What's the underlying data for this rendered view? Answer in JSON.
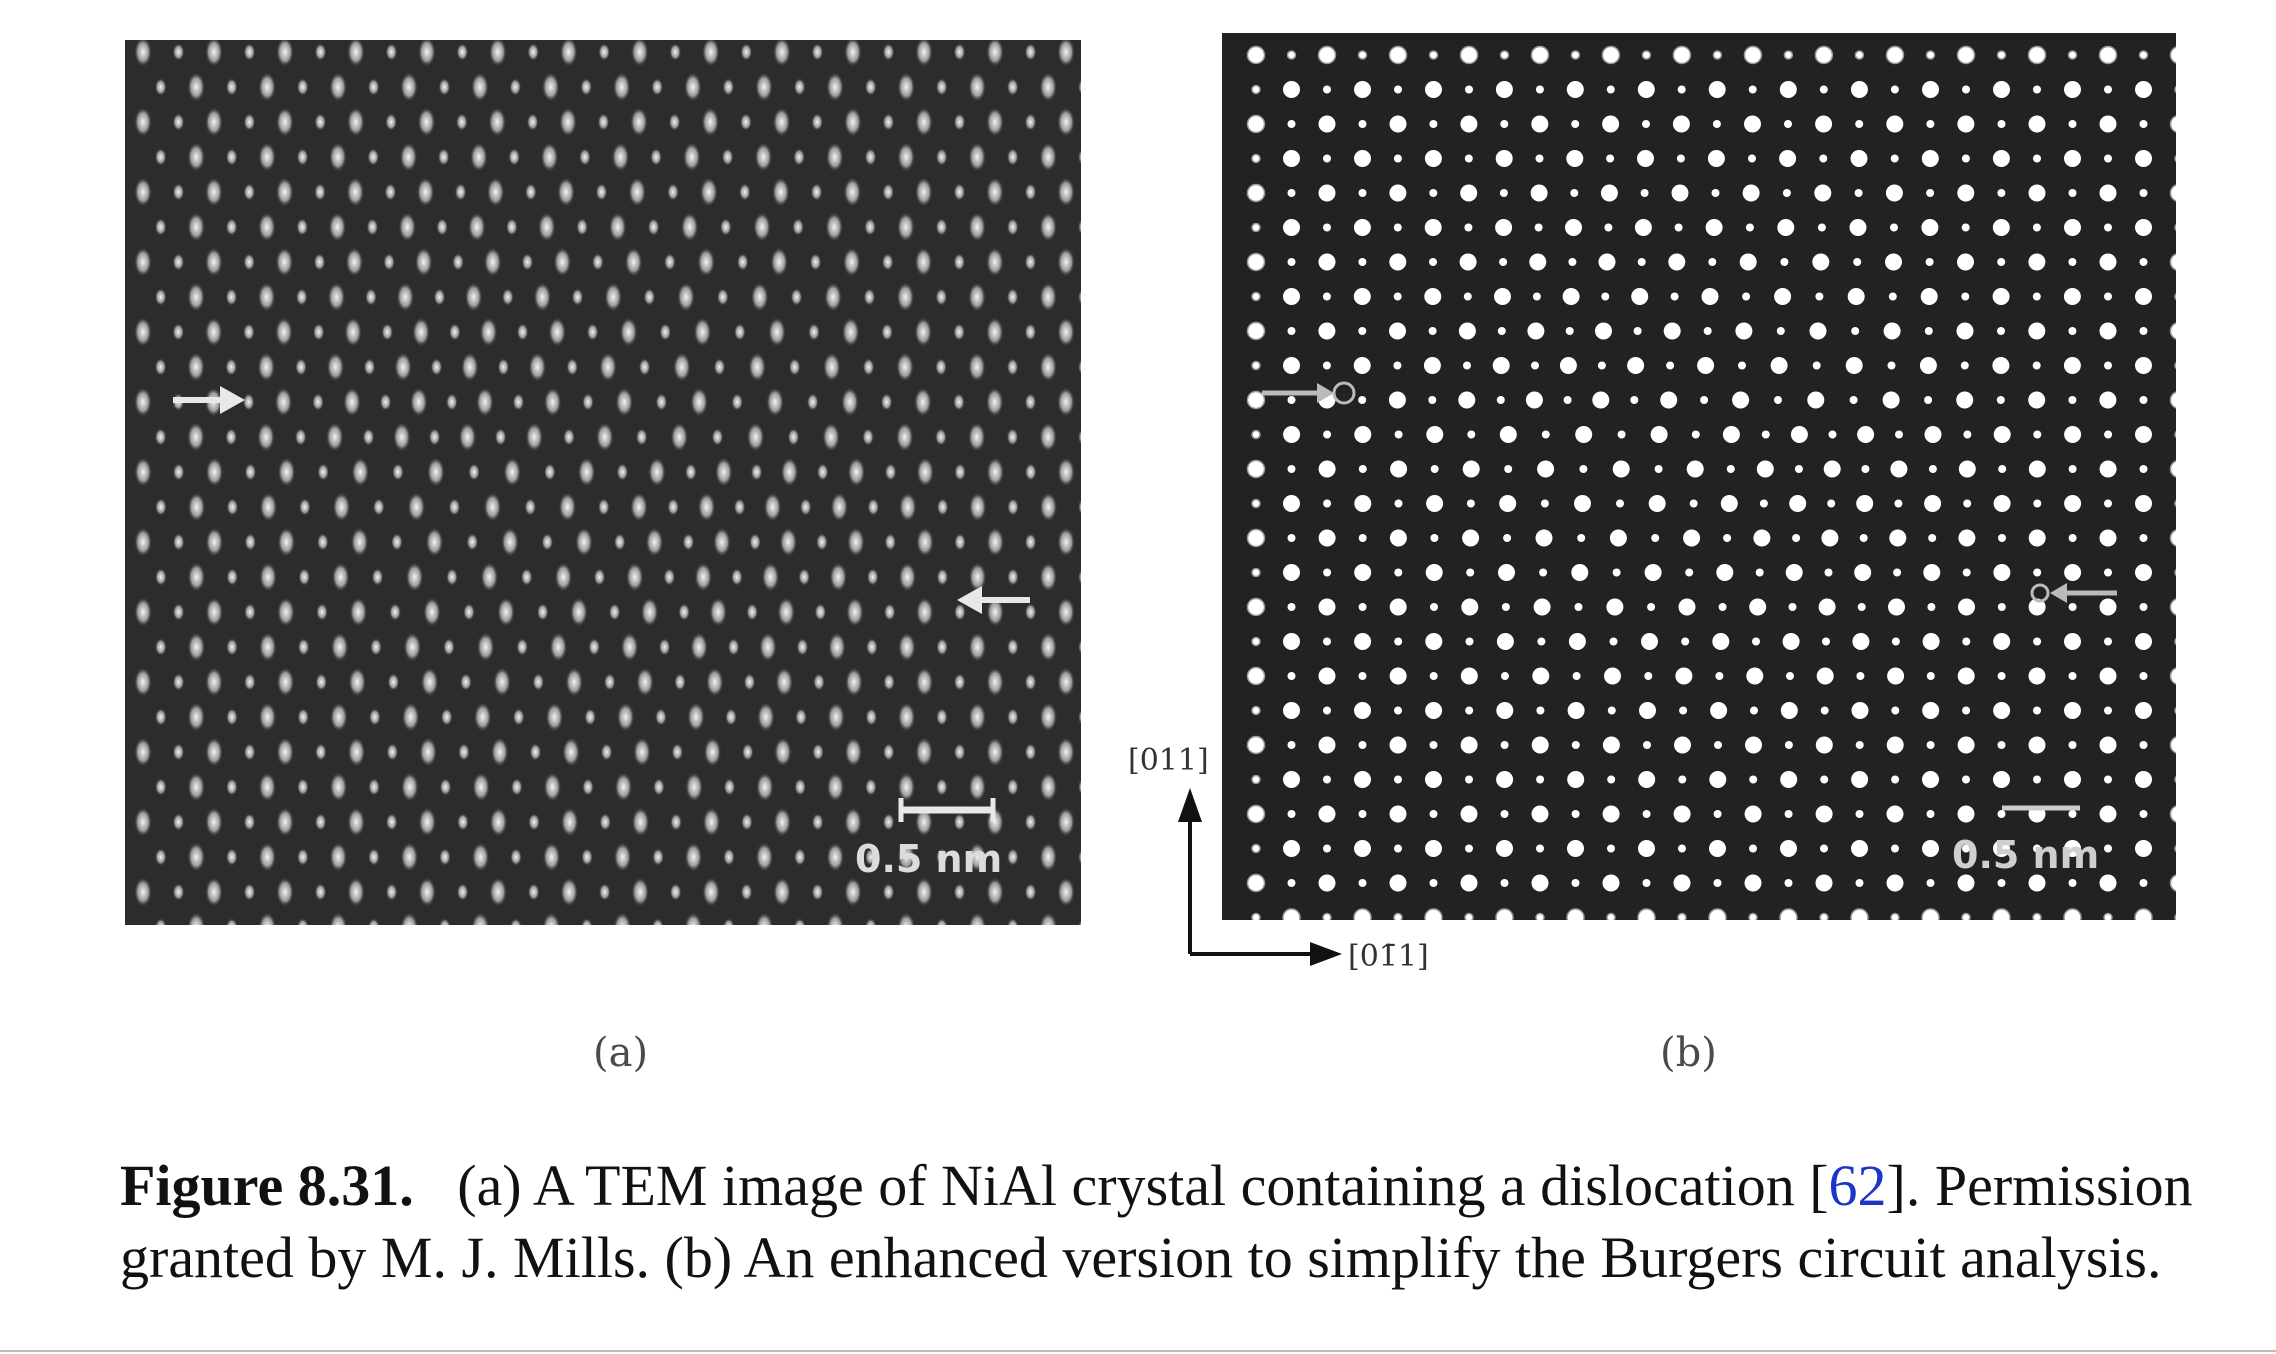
{
  "figure": {
    "panel_a": {
      "label": "(a)",
      "scale_bar": "0.5 nm"
    },
    "panel_b": {
      "label": "(b)",
      "scale_bar": "0.5 nm"
    },
    "axes": {
      "vertical": "[011]",
      "horizontal": "[01̄1]"
    },
    "caption": {
      "number": "Figure 8.31.",
      "text_1": "(a) A TEM image of NiAl crystal containing a dislocation [",
      "ref": "62",
      "text_2": "]. Permission granted by M. J. Mills. (b) An enhanced version to simplify the Burgers circuit analysis."
    }
  }
}
